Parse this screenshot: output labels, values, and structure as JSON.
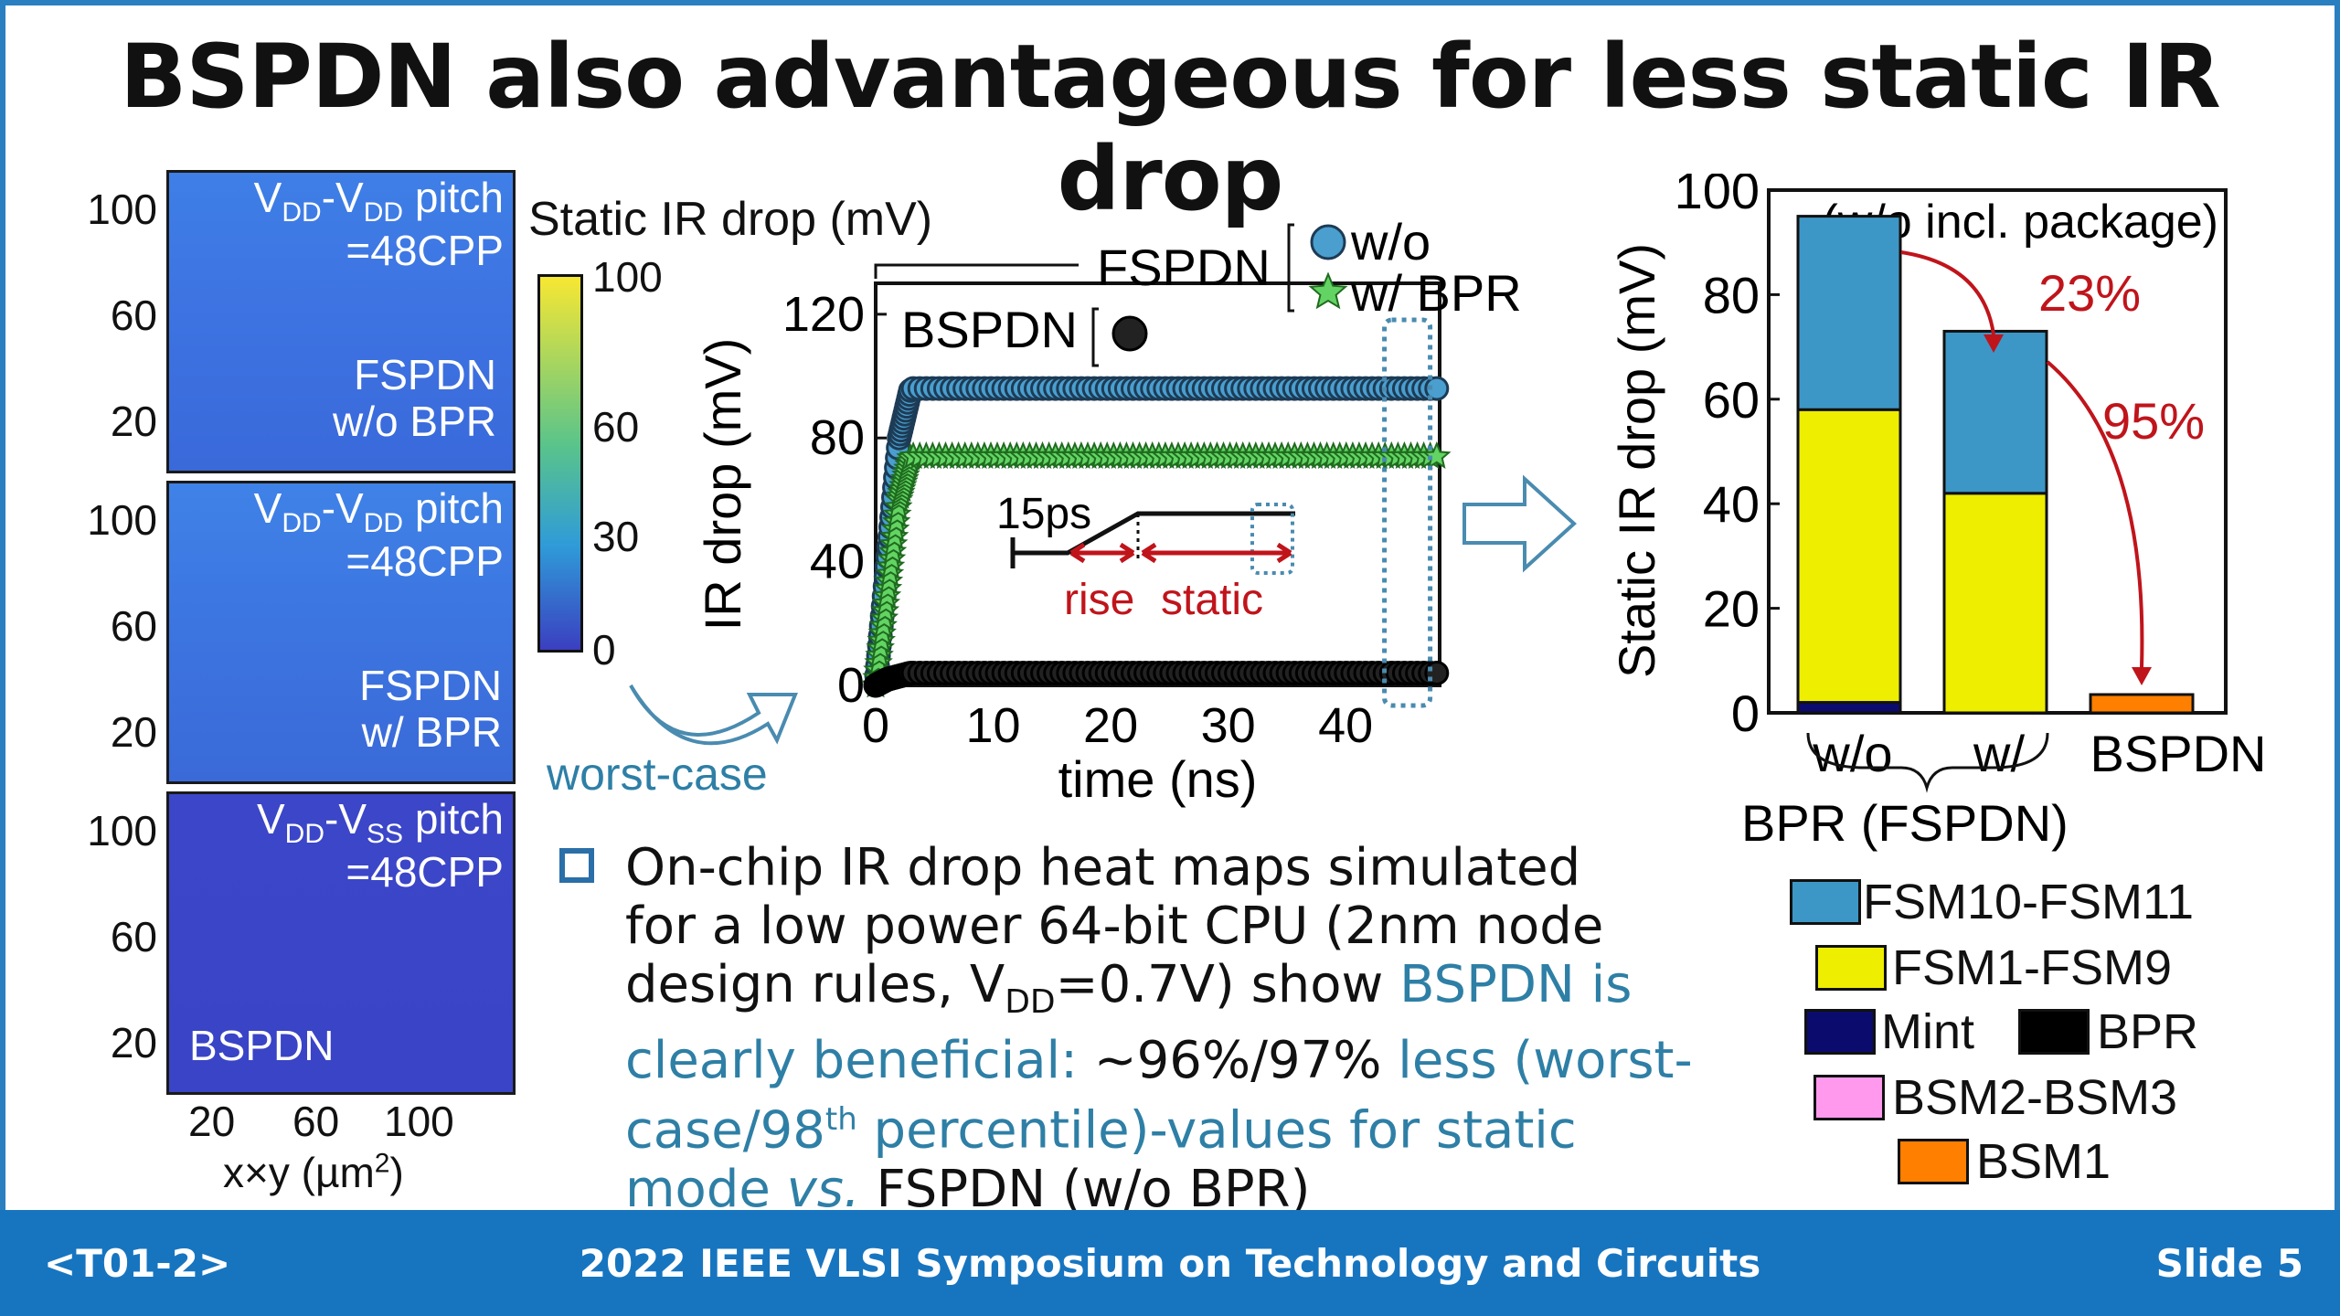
{
  "title": "BSPDN also advantageous for less static IR drop",
  "footer": {
    "left": "<T01-2>",
    "center": "2022 IEEE VLSI Symposium on Technology and Circuits",
    "right": "Slide 5"
  },
  "heatmaps": {
    "panels": [
      {
        "pitch_main": "V",
        "pitch_s1": "DD",
        "pitch_mid": "-V",
        "pitch_s2": "DD",
        "pitch_tail": " pitch",
        "pitch_line2": "=48CPP",
        "label1": "FSPDN",
        "label2": "w/o BPR"
      },
      {
        "pitch_main": "V",
        "pitch_s1": "DD",
        "pitch_mid": "-V",
        "pitch_s2": "DD",
        "pitch_tail": " pitch",
        "pitch_line2": "=48CPP",
        "label1": "FSPDN",
        "label2": "w/ BPR"
      },
      {
        "pitch_main": "V",
        "pitch_s1": "DD",
        "pitch_mid": "-V",
        "pitch_s2": "SS",
        "pitch_tail": " pitch",
        "pitch_line2": "=48CPP",
        "label1": "BSPDN",
        "label2": ""
      }
    ],
    "y_ticks": [
      "100",
      "60",
      "20"
    ],
    "x_ticks": [
      "20",
      "60",
      "100"
    ],
    "x_label_pre": "x×y (µm",
    "x_label_sup": "2",
    "x_label_post": ")",
    "colorbar_title": "Static IR drop (mV)",
    "colorbar_ticks": [
      "100",
      "60",
      "30",
      "0"
    ],
    "colorbar_colors": [
      "#f7e733",
      "#5ac48a",
      "#2f9bd8",
      "#3b3fc0"
    ],
    "worst_case": "worst-case"
  },
  "timechart": {
    "ylabel": "IR drop (mV)",
    "xlabel": "time (ns)",
    "fspdn_label": "FSPDN",
    "bspdn_label": "BSPDN",
    "legend_wo": "w/o",
    "legend_w": "w/ BPR",
    "inset_15ps": "15ps",
    "inset_rise": "rise",
    "inset_static": "static",
    "colors": {
      "bspdn": "#222222",
      "wo": "#4a9fcf",
      "w": "#63d463",
      "red": "#c0141b",
      "box": "#4a8bb0"
    }
  },
  "bullet": {
    "l1": "On-chip IR drop heat maps simulated",
    "l2": "for a low power 64-bit CPU (2nm node",
    "l3a": "design rules, V",
    "l3sub": "DD",
    "l3b": "=0.7V) show ",
    "l3c": "BSPDN is",
    "l4a": "clearly beneficial: ",
    "l4b": "~96%/97%",
    "l4c": " less (worst-",
    "l5a": "case/98",
    "l5sup": "th",
    "l5b": " percentile)-values for static",
    "l6a": "mode ",
    "l6b": "vs.",
    "l6c": " FSPDN (w/o BPR)"
  },
  "chart_data": [
    {
      "type": "line",
      "xlabel": "time (ns)",
      "ylabel": "IR drop (mV)",
      "xlim": [
        0,
        48
      ],
      "ylim": [
        0,
        130
      ],
      "x_ticks": [
        0,
        10,
        20,
        30,
        40
      ],
      "y_ticks": [
        0,
        40,
        80,
        120
      ],
      "series": [
        {
          "name": "w/o",
          "group": "FSPDN",
          "x": [
            0,
            1,
            2,
            3,
            48
          ],
          "y": [
            0,
            40,
            80,
            96,
            96
          ]
        },
        {
          "name": "w/ BPR",
          "group": "FSPDN",
          "x": [
            0,
            1,
            2,
            3,
            48
          ],
          "y": [
            0,
            30,
            60,
            74,
            74
          ]
        },
        {
          "name": "",
          "group": "BSPDN",
          "x": [
            0,
            1,
            2,
            3,
            48
          ],
          "y": [
            0,
            2,
            3,
            4,
            4
          ]
        }
      ]
    },
    {
      "type": "bar",
      "stacked": true,
      "ylabel": "Static IR drop (mV)",
      "annotation": "(w/o incl. package)",
      "ylim": [
        0,
        100
      ],
      "y_ticks": [
        0,
        20,
        40,
        60,
        80,
        100
      ],
      "categories": [
        "w/o",
        "w/",
        "BSPDN"
      ],
      "group_label": "BPR (FSPDN)",
      "series": [
        {
          "name": "Mint",
          "color": "#0b0b6e",
          "values": [
            2,
            0,
            0
          ]
        },
        {
          "name": "FSM1-FSM9",
          "color": "#eeee00",
          "values": [
            56,
            42,
            0
          ]
        },
        {
          "name": "FSM10-FSM11",
          "color": "#3d97c6",
          "values": [
            37,
            31,
            0
          ]
        },
        {
          "name": "BPR",
          "color": "#000000",
          "values": [
            0,
            0,
            0
          ]
        },
        {
          "name": "BSM2-BSM3",
          "color": "#ff99ee",
          "values": [
            0,
            0,
            0
          ]
        },
        {
          "name": "BSM1",
          "color": "#ff7f00",
          "values": [
            0,
            0,
            3.5
          ]
        }
      ],
      "reductions": [
        "23%",
        "95%"
      ],
      "legend_order": [
        "FSM10-FSM11",
        "FSM1-FSM9",
        "Mint",
        "BPR",
        "BSM2-BSM3",
        "BSM1"
      ]
    }
  ]
}
